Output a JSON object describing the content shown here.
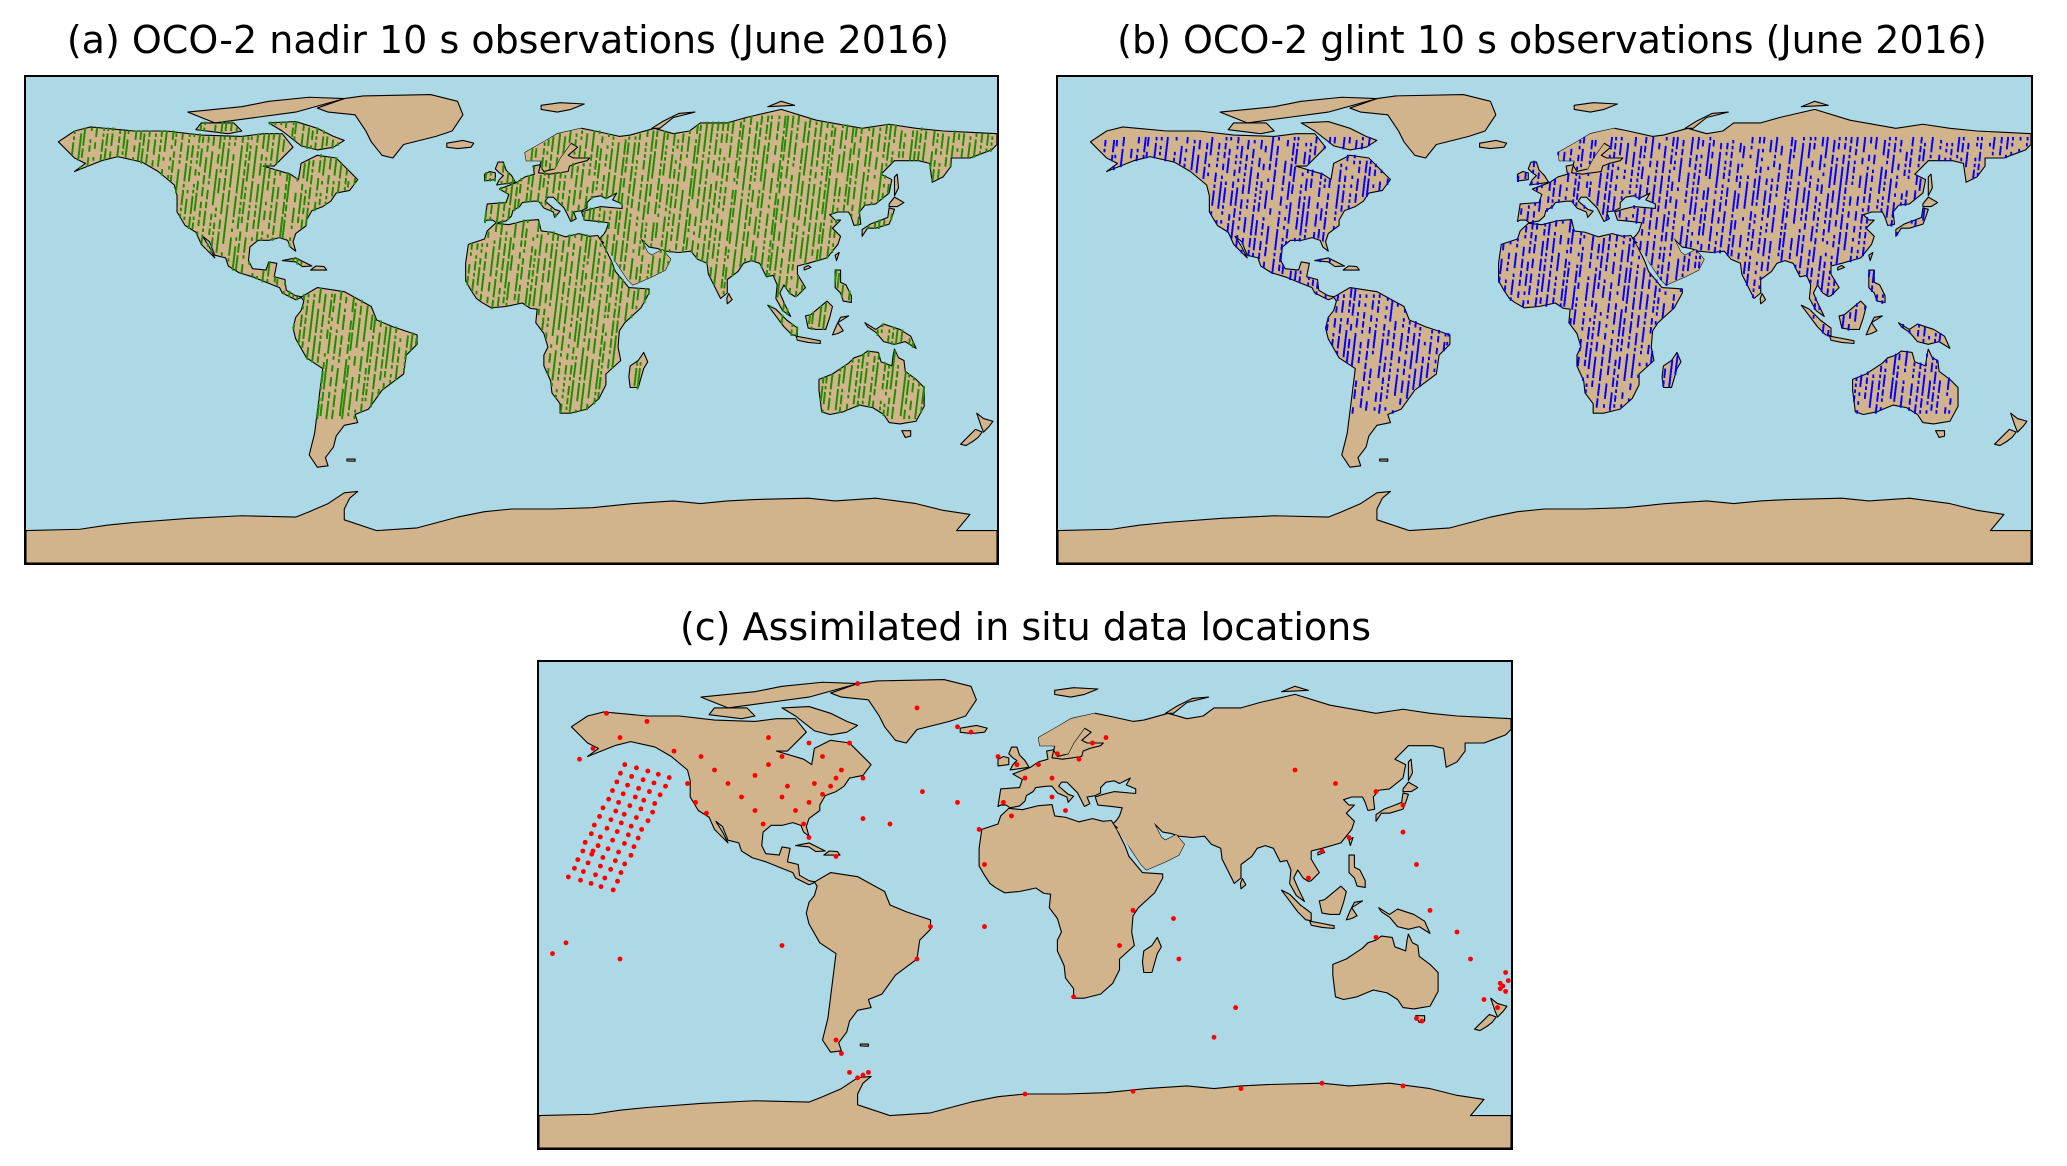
{
  "colors": {
    "ocean": "#add8e6",
    "land": "#d2b48c",
    "coastline": "#000000",
    "nadir_marker": "#1e8c00",
    "glint_marker": "#0000ff",
    "insitu_marker": "#ff0000"
  },
  "panels": [
    {
      "id": "a",
      "title": "(a) OCO-2 nadir 10 s observations (June 2016)",
      "marker_color": "#1e8c00",
      "marker": "dense-tracks"
    },
    {
      "id": "b",
      "title": "(b) OCO-2 glint 10 s observations (June 2016)",
      "marker_color": "#0000ff",
      "marker": "dense-tracks"
    },
    {
      "id": "c",
      "title": "(c) Assimilated in situ data locations",
      "marker_color": "#ff0000",
      "marker": "dots",
      "points_lonlat": [
        [
          -95,
          52
        ],
        [
          -100,
          48
        ],
        [
          -105,
          40
        ],
        [
          -90,
          40
        ],
        [
          -85,
          35
        ],
        [
          -80,
          38
        ],
        [
          -75,
          41
        ],
        [
          -72,
          44
        ],
        [
          -110,
          45
        ],
        [
          -120,
          55
        ],
        [
          -115,
          50
        ],
        [
          -88,
          44
        ],
        [
          -82,
          30
        ],
        [
          -97,
          30
        ],
        [
          -100,
          35
        ],
        [
          -78,
          45
        ],
        [
          -70,
          47
        ],
        [
          -68,
          50
        ],
        [
          -60,
          47
        ],
        [
          -65,
          60
        ],
        [
          -80,
          60
        ],
        [
          -130,
          57
        ],
        [
          -150,
          62
        ],
        [
          -155,
          71
        ],
        [
          -140,
          68
        ],
        [
          -160,
          58
        ],
        [
          -165,
          54
        ],
        [
          -125,
          45
        ],
        [
          -122,
          38
        ],
        [
          -118,
          34
        ],
        [
          -90,
          55
        ],
        [
          -75,
          55
        ],
        [
          -95,
          62
        ],
        [
          -62,
          82
        ],
        [
          -40,
          73
        ],
        [
          -25,
          66
        ],
        [
          -20,
          64
        ],
        [
          -10,
          55
        ],
        [
          -3,
          52
        ],
        [
          0,
          47
        ],
        [
          5,
          52
        ],
        [
          10,
          47
        ],
        [
          12,
          56
        ],
        [
          20,
          54
        ],
        [
          25,
          60
        ],
        [
          30,
          62
        ],
        [
          10,
          40
        ],
        [
          -8,
          38
        ],
        [
          -17,
          28
        ],
        [
          -60,
          32
        ],
        [
          -50,
          30
        ],
        [
          -38,
          42
        ],
        [
          -25,
          38
        ],
        [
          15,
          35
        ],
        [
          -5,
          33
        ],
        [
          100,
          50
        ],
        [
          115,
          45
        ],
        [
          130,
          42
        ],
        [
          140,
          37
        ],
        [
          120,
          25
        ],
        [
          110,
          20
        ],
        [
          105,
          10
        ],
        [
          140,
          27
        ],
        [
          145,
          15
        ],
        [
          150,
          -2
        ],
        [
          130,
          -12
        ],
        [
          160,
          -10
        ],
        [
          165,
          -20
        ],
        [
          170,
          -35
        ],
        [
          175,
          -38
        ],
        [
          178,
          -25
        ],
        [
          176,
          -29
        ],
        [
          177,
          -30
        ],
        [
          178,
          -32
        ],
        [
          176,
          -31
        ],
        [
          179,
          -28
        ],
        [
          145,
          -42
        ],
        [
          147,
          -43
        ],
        [
          70,
          -49
        ],
        [
          78,
          -38
        ],
        [
          57,
          -20
        ],
        [
          55,
          -5
        ],
        [
          40,
          -2
        ],
        [
          35,
          -15
        ],
        [
          18,
          -34
        ],
        [
          -70,
          -50
        ],
        [
          -68,
          -55
        ],
        [
          -65,
          -62
        ],
        [
          -58,
          -62
        ],
        [
          -60,
          -63
        ],
        [
          -62,
          -64
        ],
        [
          0,
          -70
        ],
        [
          40,
          -69
        ],
        [
          80,
          -68
        ],
        [
          110,
          -66
        ],
        [
          140,
          -67
        ],
        [
          -90,
          -15
        ],
        [
          -35,
          -8
        ],
        [
          -15,
          -8
        ],
        [
          -150,
          -20
        ],
        [
          -170,
          -14
        ],
        [
          -175,
          -18
        ],
        [
          -15,
          15
        ],
        [
          -40,
          -20
        ],
        [
          -70,
          18
        ],
        [
          -80,
          25
        ],
        [
          -160,
          20
        ]
      ]
    }
  ]
}
